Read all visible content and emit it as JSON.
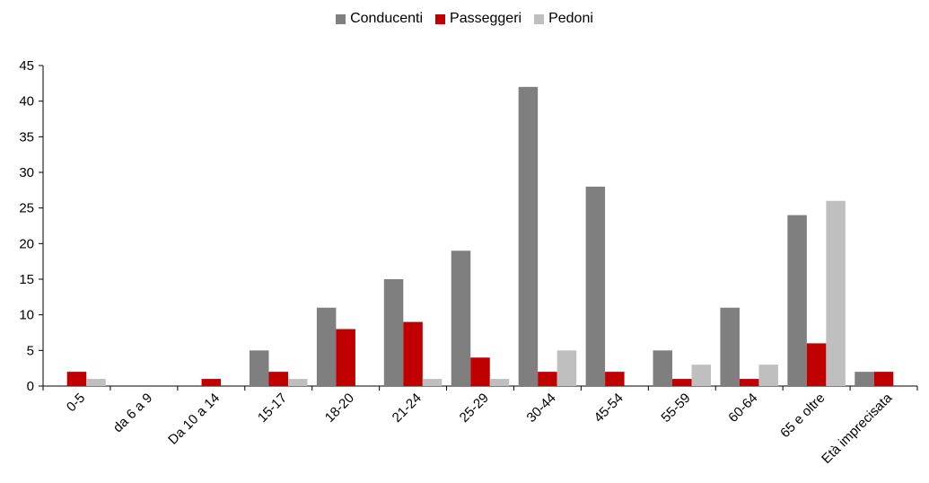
{
  "chart_data": {
    "type": "bar",
    "categories": [
      "0-5",
      "da 6 a 9",
      "Da 10 a 14",
      "15-17",
      "18-20",
      "21-24",
      "25-29",
      "30-44",
      "45-54",
      "55-59",
      "60-64",
      "65 e oltre",
      "Età imprecisata"
    ],
    "series": [
      {
        "name": "Conducenti",
        "color": "#7f7f7f",
        "values": [
          0,
          0,
          0,
          5,
          11,
          15,
          19,
          42,
          28,
          5,
          11,
          24,
          2
        ]
      },
      {
        "name": "Passeggeri",
        "color": "#c00000",
        "values": [
          2,
          0,
          1,
          2,
          8,
          9,
          4,
          2,
          2,
          1,
          1,
          6,
          2
        ]
      },
      {
        "name": "Pedoni",
        "color": "#bfbfbf",
        "values": [
          1,
          0,
          0,
          1,
          0,
          1,
          1,
          5,
          0,
          3,
          3,
          26,
          0
        ]
      }
    ],
    "yticks": [
      "0",
      "5",
      "10",
      "15",
      "20",
      "25",
      "30",
      "35",
      "40",
      "45"
    ],
    "ylim": [
      0,
      45
    ],
    "legend_position": "top-center",
    "grid": false
  }
}
